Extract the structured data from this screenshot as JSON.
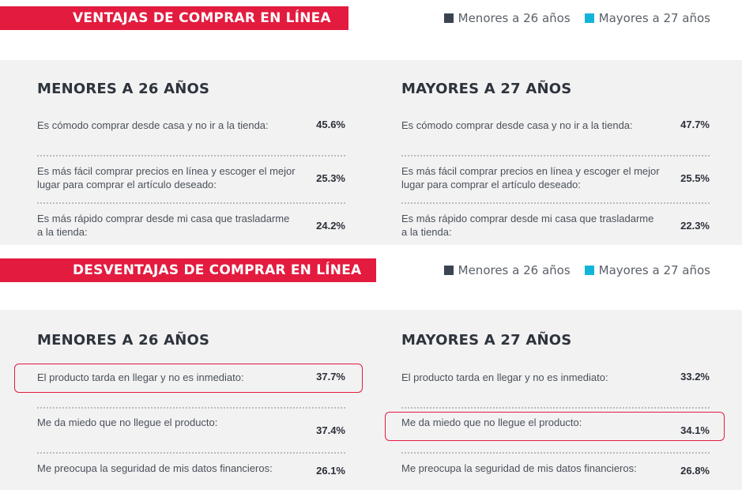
{
  "ventajas": {
    "banner": "VENTAJAS DE COMPRAR EN LÍNEA",
    "legend": {
      "menores": "Menores a 26 años",
      "mayores": "Mayores a 27 años"
    },
    "menores": {
      "title": "MENORES A 26 AÑOS",
      "rows": [
        {
          "text": "Es cómodo comprar desde casa y no ir a la tienda:",
          "value": "45.6%"
        },
        {
          "text": "Es más fácil comprar precios en línea y escoger el mejor lugar para comprar el artículo deseado:",
          "value": "25.3%"
        },
        {
          "text": "Es más rápido comprar desde mi casa que trasladarme a la tienda:",
          "value": "24.2%"
        }
      ]
    },
    "mayores": {
      "title": "MAYORES A 27 AÑOS",
      "rows": [
        {
          "text": "Es cómodo comprar desde casa y no ir a la tienda:",
          "value": "47.7%"
        },
        {
          "text": "Es más fácil comprar precios en línea y escoger el mejor lugar para comprar el artículo deseado:",
          "value": "25.5%"
        },
        {
          "text": "Es más rápido comprar desde mi casa que trasladarme a la tienda:",
          "value": "22.3%"
        }
      ]
    }
  },
  "desventajas": {
    "banner": "DESVENTAJAS DE COMPRAR EN LÍNEA",
    "legend": {
      "menores": "Menores a 26 años",
      "mayores": "Mayores a 27 años"
    },
    "menores": {
      "title": "MENORES A 26 AÑOS",
      "rows": [
        {
          "text": "El producto tarda en llegar y no es inmediato:",
          "value": "37.7%"
        },
        {
          "text": "Me da miedo que no llegue el producto:",
          "value": "37.4%"
        },
        {
          "text": "Me preocupa la seguridad de mis datos financieros:",
          "value": "26.1%"
        }
      ]
    },
    "mayores": {
      "title": "MAYORES A 27 AÑOS",
      "rows": [
        {
          "text": "El producto tarda en llegar y no es inmediato:",
          "value": "33.2%"
        },
        {
          "text": "Me da miedo que no llegue el producto:",
          "value": "34.1%"
        },
        {
          "text": "Me preocupa la seguridad de mis datos financieros:",
          "value": "26.8%"
        }
      ]
    }
  },
  "colors": {
    "accent": "#e31b3f",
    "menores": "#3b4452",
    "mayores": "#12b5d8",
    "panel": "#f2f2f3"
  }
}
